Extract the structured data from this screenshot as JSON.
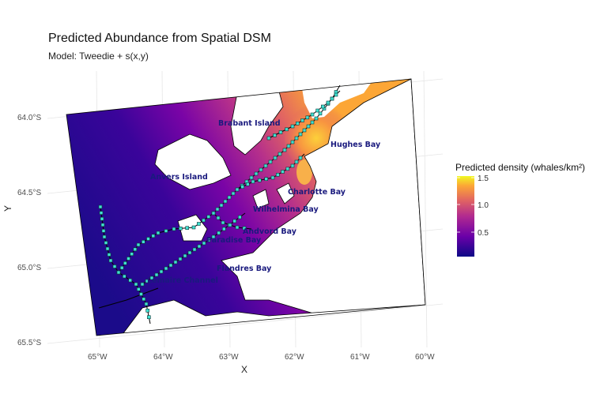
{
  "title": "Predicted Abundance from Spatial DSM",
  "subtitle": "Model: Tweedie + s(x,y)",
  "axes": {
    "xlabel": "X",
    "ylabel": "Y",
    "x_ticks": [
      "65°W",
      "64°W",
      "63°W",
      "62°W",
      "61°W",
      "60°W"
    ],
    "y_ticks": [
      "64.0°S",
      "64.5°S",
      "65.0°S",
      "65.5°S"
    ]
  },
  "legend": {
    "title": "Predicted density (whales/km²)",
    "ticks": [
      "1.5",
      "1.0",
      "0.5"
    ],
    "colors": [
      "#0d0887",
      "#6a00a8",
      "#b12a90",
      "#e16462",
      "#fca636",
      "#f0f921"
    ]
  },
  "places": [
    {
      "name": "Brabant Island"
    },
    {
      "name": "Hughes Bay"
    },
    {
      "name": "Anvers Island"
    },
    {
      "name": "Charlotte Bay"
    },
    {
      "name": "Wilhelmina Bay"
    },
    {
      "name": "Andvord Bay"
    },
    {
      "name": "Paradise Bay"
    },
    {
      "name": "Flandres Bay"
    },
    {
      "name": "Lemaire Channel"
    }
  ],
  "style": {
    "track_color": "#40e0d0",
    "grid_color": "#e5e5e5",
    "label_color": "#1a1a7e"
  }
}
